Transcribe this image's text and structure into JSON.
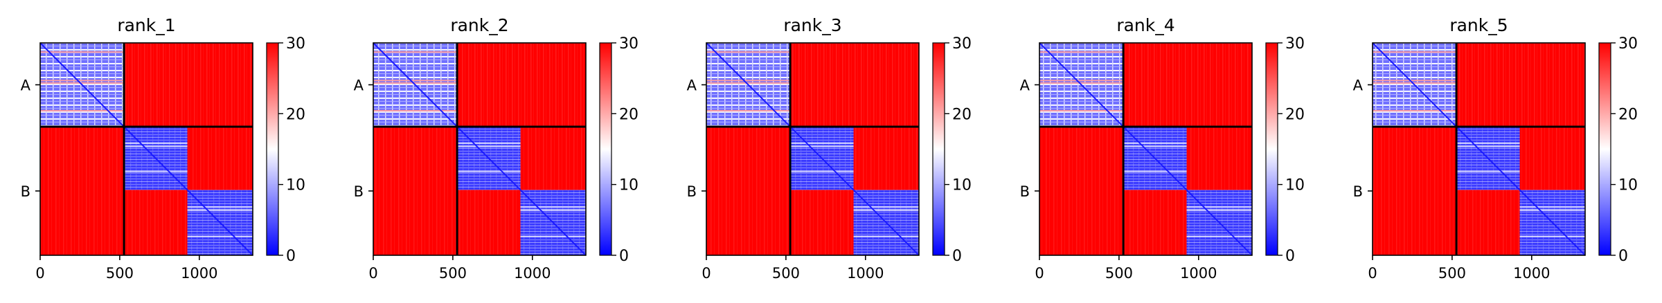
{
  "colors": {
    "low": "#0000ff",
    "mid": "#ffffff",
    "high": "#ff0000",
    "divider": "#000000"
  },
  "chart_data": [
    {
      "type": "heatmap",
      "title": "rank_1",
      "matrix_size": 1336,
      "chain_boundaries": [
        0,
        527,
        1336
      ],
      "chains": [
        "A",
        "B"
      ],
      "x_ticks": [
        0,
        500,
        1000
      ],
      "colorbar": {
        "min": 0,
        "max": 30,
        "ticks": [
          0,
          10,
          20,
          30
        ],
        "colormap": "bwr"
      },
      "blocks_pae": [
        [
          8,
          28
        ],
        [
          28,
          8
        ]
      ],
      "domains": [
        [
          0,
          527
        ],
        [
          527,
          925
        ],
        [
          925,
          1336
        ]
      ]
    },
    {
      "type": "heatmap",
      "title": "rank_2",
      "matrix_size": 1336,
      "chain_boundaries": [
        0,
        527,
        1336
      ],
      "chains": [
        "A",
        "B"
      ],
      "x_ticks": [
        0,
        500,
        1000
      ],
      "colorbar": {
        "min": 0,
        "max": 30,
        "ticks": [
          0,
          10,
          20,
          30
        ],
        "colormap": "bwr"
      },
      "blocks_pae": [
        [
          8,
          28
        ],
        [
          28,
          8
        ]
      ],
      "domains": [
        [
          0,
          527
        ],
        [
          527,
          925
        ],
        [
          925,
          1336
        ]
      ]
    },
    {
      "type": "heatmap",
      "title": "rank_3",
      "matrix_size": 1336,
      "chain_boundaries": [
        0,
        527,
        1336
      ],
      "chains": [
        "A",
        "B"
      ],
      "x_ticks": [
        0,
        500,
        1000
      ],
      "colorbar": {
        "min": 0,
        "max": 30,
        "ticks": [
          0,
          10,
          20,
          30
        ],
        "colormap": "bwr"
      },
      "blocks_pae": [
        [
          8,
          28
        ],
        [
          28,
          8
        ]
      ],
      "domains": [
        [
          0,
          527
        ],
        [
          527,
          925
        ],
        [
          925,
          1336
        ]
      ]
    },
    {
      "type": "heatmap",
      "title": "rank_4",
      "matrix_size": 1336,
      "chain_boundaries": [
        0,
        527,
        1336
      ],
      "chains": [
        "A",
        "B"
      ],
      "x_ticks": [
        0,
        500,
        1000
      ],
      "colorbar": {
        "min": 0,
        "max": 30,
        "ticks": [
          0,
          10,
          20,
          30
        ],
        "colormap": "bwr"
      },
      "blocks_pae": [
        [
          8,
          28
        ],
        [
          28,
          8
        ]
      ],
      "domains": [
        [
          0,
          527
        ],
        [
          527,
          925
        ],
        [
          925,
          1336
        ]
      ]
    },
    {
      "type": "heatmap",
      "title": "rank_5",
      "matrix_size": 1336,
      "chain_boundaries": [
        0,
        527,
        1336
      ],
      "chains": [
        "A",
        "B"
      ],
      "x_ticks": [
        0,
        500,
        1000
      ],
      "colorbar": {
        "min": 0,
        "max": 30,
        "ticks": [
          0,
          10,
          20,
          30
        ],
        "colormap": "bwr"
      },
      "blocks_pae": [
        [
          8,
          28
        ],
        [
          28,
          8
        ]
      ],
      "domains": [
        [
          0,
          527
        ],
        [
          527,
          925
        ],
        [
          925,
          1336
        ]
      ]
    }
  ]
}
